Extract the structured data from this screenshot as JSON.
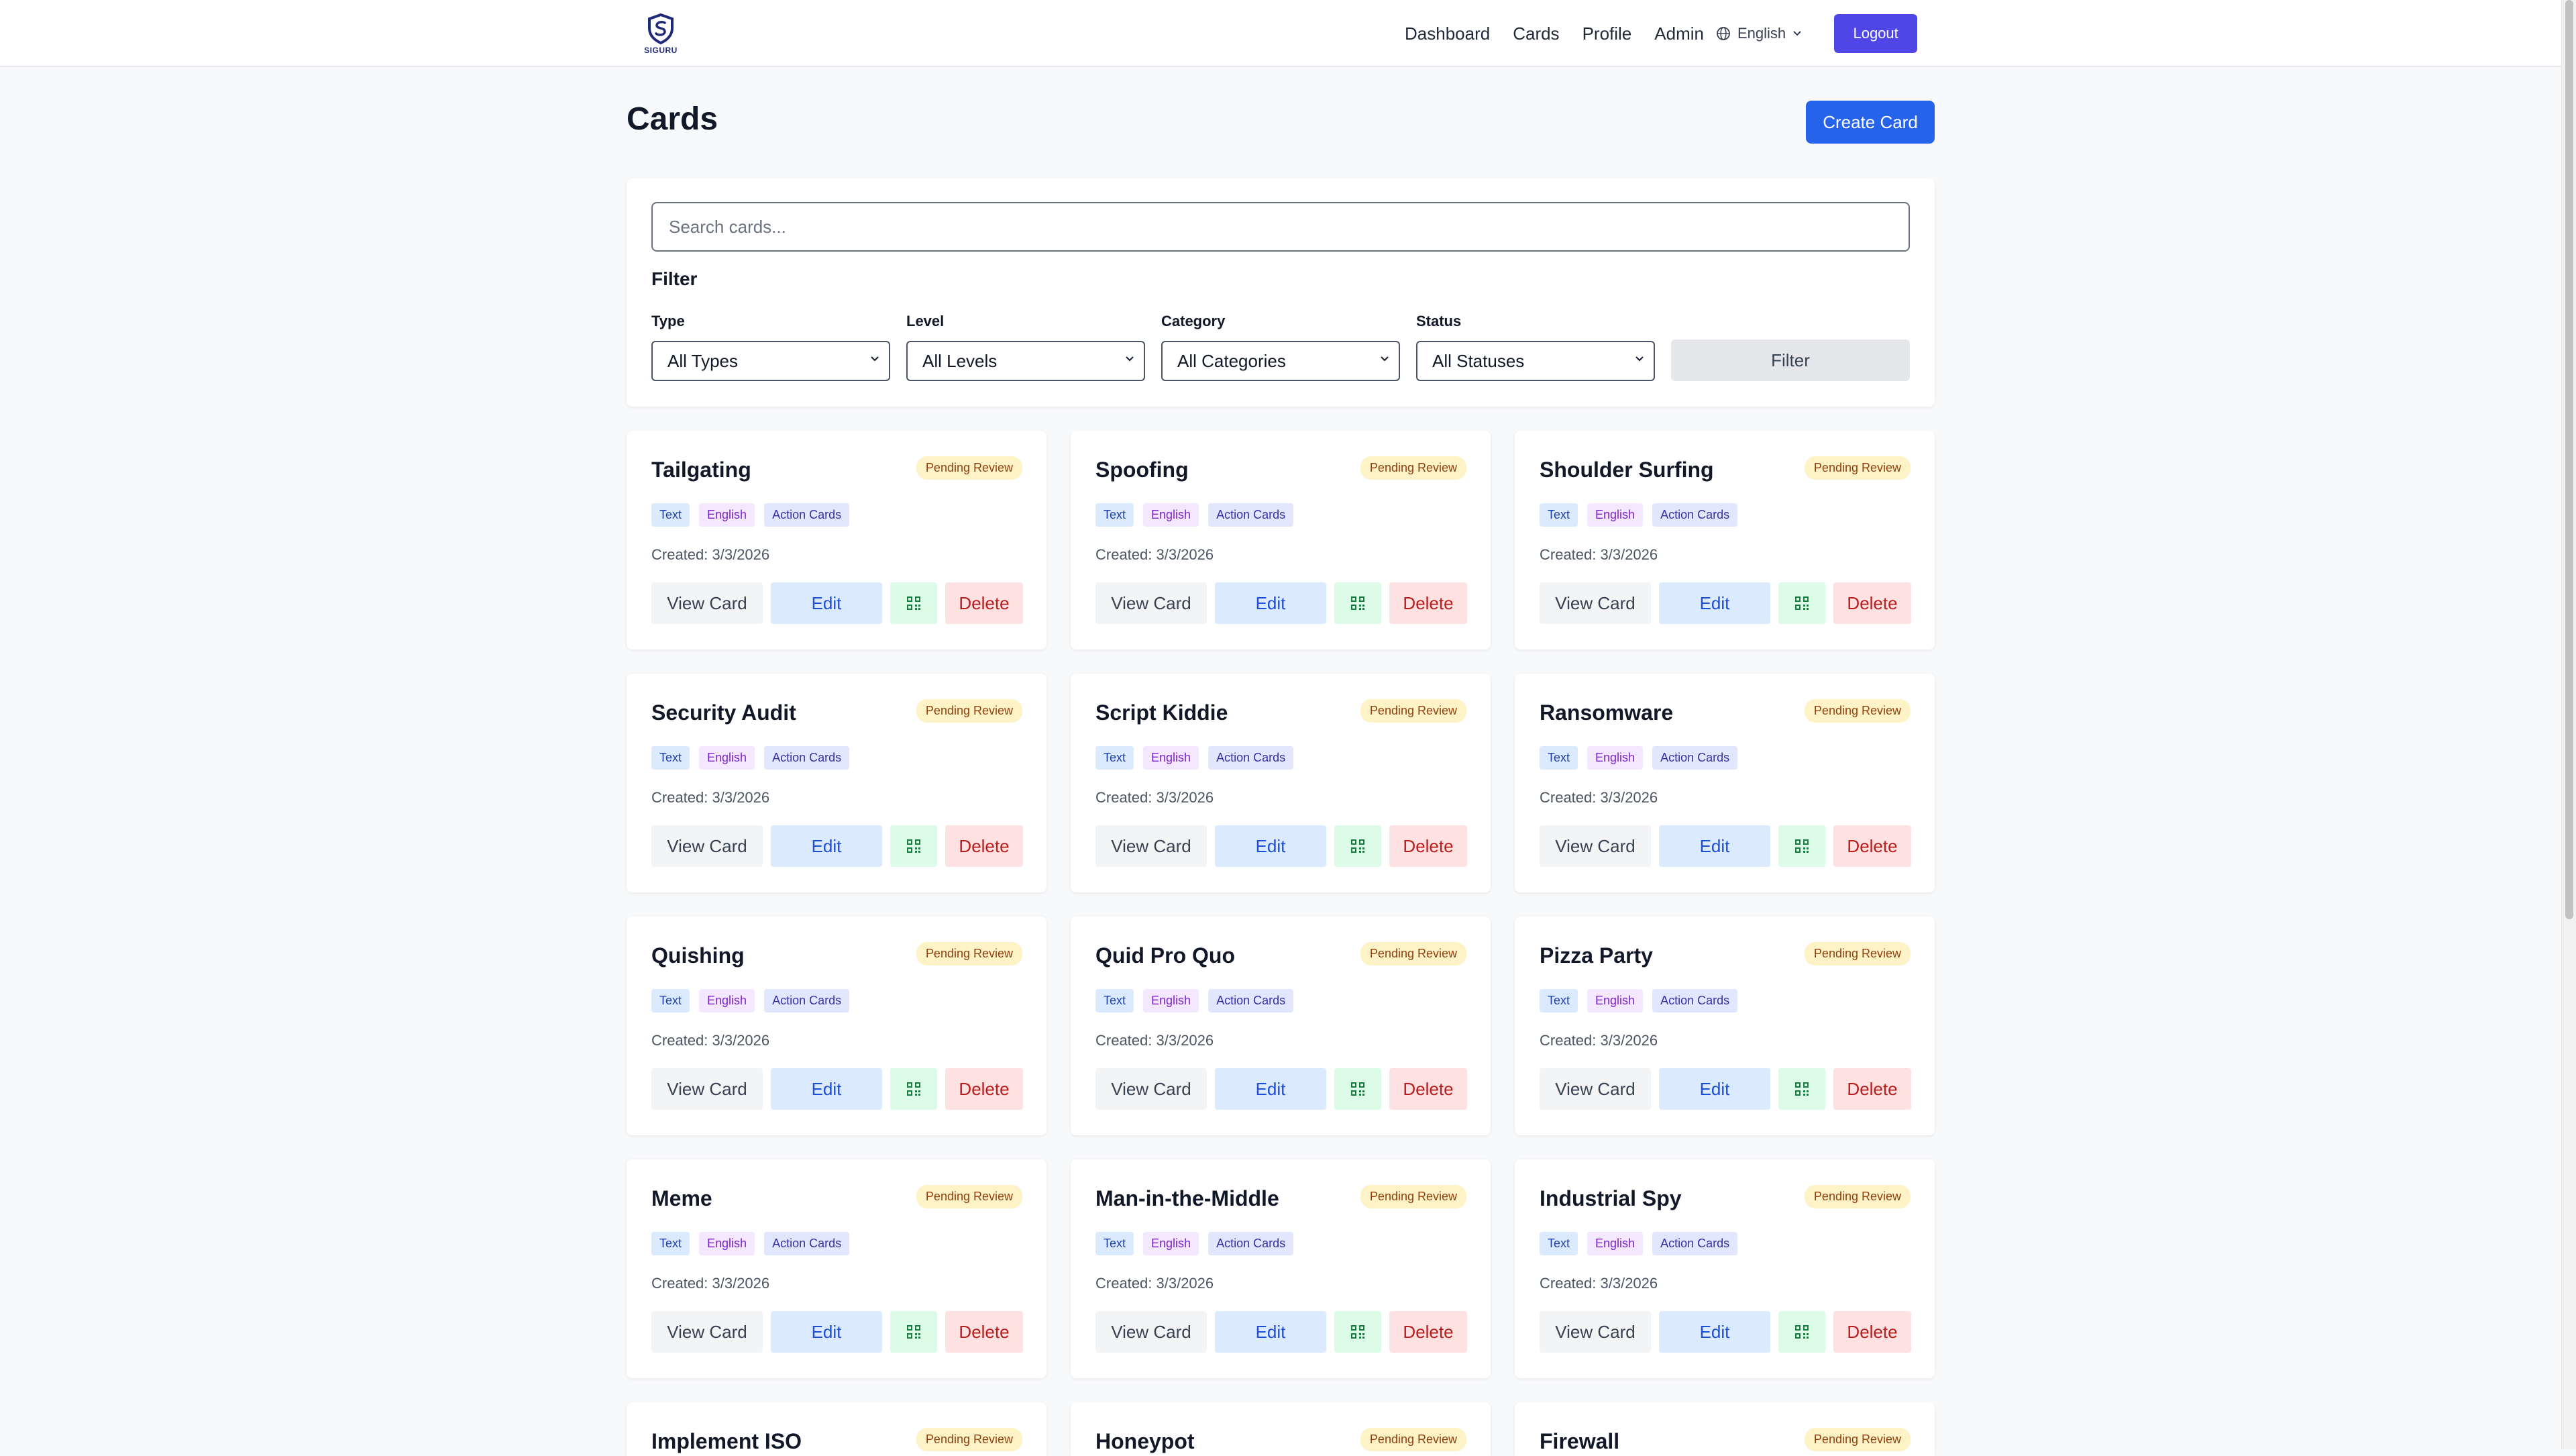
{
  "header": {
    "logo_text": "SIGURU",
    "nav": [
      "Dashboard",
      "Cards",
      "Profile",
      "Admin"
    ],
    "language": "English",
    "logout_label": "Logout"
  },
  "page": {
    "title": "Cards",
    "create_label": "Create Card"
  },
  "filters": {
    "search_placeholder": "Search cards...",
    "heading": "Filter",
    "type_label": "Type",
    "type_value": "All Types",
    "level_label": "Level",
    "level_value": "All Levels",
    "category_label": "Category",
    "category_value": "All Categories",
    "status_label": "Status",
    "status_value": "All Statuses",
    "filter_label": "Filter"
  },
  "card_actions": {
    "view": "View Card",
    "edit": "Edit",
    "delete": "Delete"
  },
  "cards": [
    {
      "title": "Tailgating",
      "status": "Pending Review",
      "type": "Text",
      "language": "English",
      "category": "Action Cards",
      "created": "Created: 3/3/2026"
    },
    {
      "title": "Spoofing",
      "status": "Pending Review",
      "type": "Text",
      "language": "English",
      "category": "Action Cards",
      "created": "Created: 3/3/2026"
    },
    {
      "title": "Shoulder Surfing",
      "status": "Pending Review",
      "type": "Text",
      "language": "English",
      "category": "Action Cards",
      "created": "Created: 3/3/2026"
    },
    {
      "title": "Security Audit",
      "status": "Pending Review",
      "type": "Text",
      "language": "English",
      "category": "Action Cards",
      "created": "Created: 3/3/2026"
    },
    {
      "title": "Script Kiddie",
      "status": "Pending Review",
      "type": "Text",
      "language": "English",
      "category": "Action Cards",
      "created": "Created: 3/3/2026"
    },
    {
      "title": "Ransomware",
      "status": "Pending Review",
      "type": "Text",
      "language": "English",
      "category": "Action Cards",
      "created": "Created: 3/3/2026"
    },
    {
      "title": "Quishing",
      "status": "Pending Review",
      "type": "Text",
      "language": "English",
      "category": "Action Cards",
      "created": "Created: 3/3/2026"
    },
    {
      "title": "Quid Pro Quo",
      "status": "Pending Review",
      "type": "Text",
      "language": "English",
      "category": "Action Cards",
      "created": "Created: 3/3/2026"
    },
    {
      "title": "Pizza Party",
      "status": "Pending Review",
      "type": "Text",
      "language": "English",
      "category": "Action Cards",
      "created": "Created: 3/3/2026"
    },
    {
      "title": "Meme",
      "status": "Pending Review",
      "type": "Text",
      "language": "English",
      "category": "Action Cards",
      "created": "Created: 3/3/2026"
    },
    {
      "title": "Man-in-the-Middle",
      "status": "Pending Review",
      "type": "Text",
      "language": "English",
      "category": "Action Cards",
      "created": "Created: 3/3/2026"
    },
    {
      "title": "Industrial Spy",
      "status": "Pending Review",
      "type": "Text",
      "language": "English",
      "category": "Action Cards",
      "created": "Created: 3/3/2026"
    },
    {
      "title": "Implement ISO",
      "status": "Pending Review"
    },
    {
      "title": "Honeypot",
      "status": "Pending Review"
    },
    {
      "title": "Firewall",
      "status": "Pending Review"
    }
  ]
}
